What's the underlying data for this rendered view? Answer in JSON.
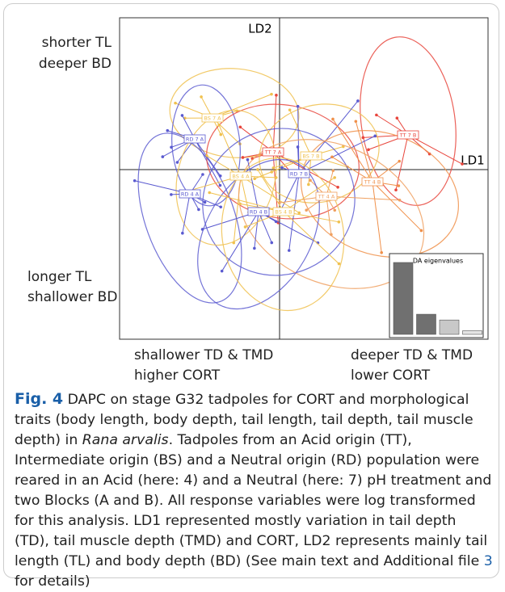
{
  "figure": {
    "axis_labels": {
      "ld1": "LD1",
      "ld2": "LD2"
    },
    "side_labels": {
      "top_left": [
        "shorter TL",
        "deeper BD"
      ],
      "bottom_left": [
        "longer TL",
        "shallower BD"
      ],
      "bottom_x_left": [
        "shallower TD & TMD",
        "higher CORT"
      ],
      "bottom_x_right": [
        "deeper TD & TMD",
        "lower CORT"
      ]
    },
    "groups": [
      {
        "label": "TT 7 B",
        "color": "#e8453c"
      },
      {
        "label": "BS 7 A",
        "color": "#f0c14f"
      },
      {
        "label": "RD 7 A",
        "color": "#5a5ad0"
      },
      {
        "label": "TT 7 A",
        "color": "#e8453c"
      },
      {
        "label": "BS 7 B",
        "color": "#f0c14f"
      },
      {
        "label": "RD 7 B",
        "color": "#5a5ad0"
      },
      {
        "label": "BS 4 A",
        "color": "#f0c14f"
      },
      {
        "label": "TT 4 B",
        "color": "#f0904a"
      },
      {
        "label": "RD 4 A",
        "color": "#5a5ad0"
      },
      {
        "label": "TT 4 A",
        "color": "#f0a060"
      },
      {
        "label": "RD 4 B",
        "color": "#5a5ad0"
      },
      {
        "label": "BS 4 B",
        "color": "#f0c14f"
      }
    ],
    "inset": {
      "title": "DA eigenvalues",
      "values": [
        100,
        28,
        20,
        5
      ],
      "colors": [
        "#707070",
        "#707070",
        "#c8c8c8",
        "#e4e4e4"
      ]
    }
  },
  "caption": {
    "label": "Fig. 4",
    "segments": [
      " DAPC on stage G32 tadpoles for CORT and morphological traits (body length, body depth, tail length, tail depth, tail muscle depth) in ",
      "Rana arvalis",
      ". Tadpoles from an Acid origin (TT), Intermediate origin (BS) and a Neutral origin (RD) population were reared in an Acid (here: 4) and a Neutral (here: 7) pH treatment and two Blocks (A and B). All response variables were log transformed for this analysis. LD1 represented mostly variation in tail depth (TD), tail muscle depth (TMD) and CORT, LD2 represents mainly tail length (TL) and body depth (BD) (See main text and Additional file ",
      "3",
      " for details)"
    ]
  }
}
